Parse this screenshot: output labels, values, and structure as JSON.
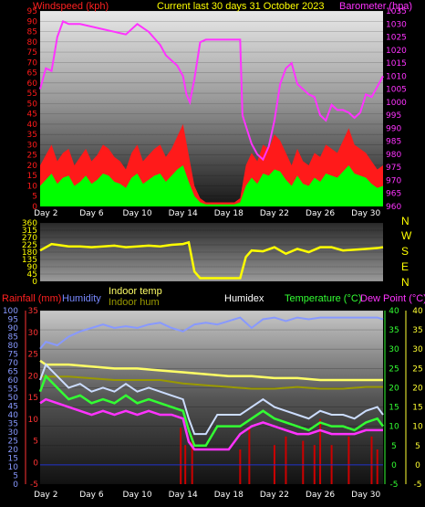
{
  "header": {
    "left": "Windspeed (kph)",
    "center": "Current last 30 days 31 October 2023",
    "right": "Barometer (hpa)"
  },
  "bottom_header": {
    "rainfall": "Rainfall (mm)",
    "humidity": "Humidity",
    "indoor_temp": "Indoor temp",
    "indoor_hum": "Indoor hum",
    "humidex": "Humidex",
    "temperature": "Temperature (°C)",
    "dew_point": "Dew Point (°C)"
  },
  "colors": {
    "wind_gust": "#ff1a1a",
    "wind_avg": "#00ff00",
    "barometer": "#ff33ff",
    "direction": "#ffff00",
    "rainfall": "#cc0000",
    "humidity": "#8899ff",
    "indoor_temp": "#ffff66",
    "indoor_hum": "#999900",
    "temperature": "#33ff33",
    "dew_point": "#ff33ff",
    "temp_light": "#ccddff"
  },
  "chart_data": [
    {
      "type": "area",
      "title": "Current last 30 days 31 October 2023",
      "ylabel_left": "Windspeed (kph)",
      "ylabel_right": "Barometer (hpa)",
      "x_ticks": [
        "Day 2",
        "Day 6",
        "Day 10",
        "Day 14",
        "Day 18",
        "Day 22",
        "Day 26",
        "Day 30"
      ],
      "left_ticks": [
        0,
        5,
        10,
        15,
        20,
        25,
        30,
        35,
        40,
        45,
        50,
        55,
        60,
        65,
        70,
        75,
        80,
        85,
        90,
        95
      ],
      "right_ticks": [
        960,
        965,
        970,
        975,
        980,
        985,
        990,
        995,
        1000,
        1005,
        1010,
        1015,
        1020,
        1025,
        1030,
        1035
      ],
      "ylim_left": [
        0,
        95
      ],
      "ylim_right": [
        960,
        1035
      ],
      "x_range": [
        1.5,
        31.5
      ],
      "series": [
        {
          "name": "Barometer (hpa)",
          "axis": "right",
          "x": [
            1.5,
            2,
            2.5,
            3,
            3.5,
            4,
            5,
            6,
            7,
            8,
            9,
            10,
            11,
            12,
            12.5,
            13,
            13.5,
            14,
            14.3,
            14.6,
            15,
            15.5,
            16,
            17,
            18,
            19,
            19.2,
            20,
            20.5,
            21,
            21.5,
            22,
            22.5,
            23,
            23.5,
            24,
            24.5,
            25,
            25.5,
            26,
            26.5,
            27,
            27.5,
            28,
            28.5,
            29,
            29.5,
            30,
            30.5,
            31,
            31.5
          ],
          "values": [
            1005,
            1013,
            1012,
            1025,
            1031,
            1030,
            1030,
            1029,
            1028,
            1027,
            1026,
            1030,
            1027,
            1022,
            1018,
            1016,
            1014,
            1010,
            1003,
            1000,
            1009,
            1023,
            1024,
            1024,
            1024,
            1024,
            995,
            984,
            980,
            978,
            983,
            993,
            1007,
            1013,
            1015,
            1007,
            1005,
            1003,
            1002,
            995,
            993,
            999,
            997,
            997,
            996,
            994,
            996,
            1003,
            1002,
            1006,
            1010
          ]
        },
        {
          "name": "Windspeed gust (kph)",
          "axis": "left",
          "color": "#ff1a1a",
          "x": [
            1.5,
            2,
            2.5,
            3,
            3.5,
            4,
            4.5,
            5,
            5.5,
            6,
            6.5,
            7,
            7.5,
            8,
            8.5,
            9,
            9.5,
            10,
            10.5,
            11,
            11.5,
            12,
            12.5,
            13,
            13.5,
            14,
            14.5,
            15,
            15.5,
            16,
            16.5,
            17,
            17.5,
            18,
            18.5,
            19,
            19.5,
            20,
            20.5,
            21,
            21.5,
            22,
            22.5,
            23,
            23.5,
            24,
            24.5,
            25,
            25.5,
            26,
            26.5,
            27,
            27.5,
            28,
            28.5,
            29,
            29.5,
            30,
            30.5,
            31,
            31.5
          ],
          "values": [
            20,
            25,
            30,
            22,
            26,
            28,
            20,
            24,
            28,
            22,
            25,
            30,
            28,
            24,
            22,
            18,
            26,
            30,
            22,
            25,
            28,
            30,
            24,
            28,
            34,
            40,
            25,
            10,
            4,
            2,
            2,
            2,
            2,
            2,
            2,
            4,
            20,
            26,
            22,
            30,
            28,
            35,
            32,
            26,
            20,
            28,
            22,
            20,
            26,
            24,
            30,
            28,
            26,
            32,
            38,
            30,
            28,
            26,
            22,
            18,
            20
          ]
        },
        {
          "name": "Windspeed avg (kph)",
          "axis": "left",
          "color": "#00ff00",
          "x": [
            1.5,
            2,
            2.5,
            3,
            3.5,
            4,
            4.5,
            5,
            5.5,
            6,
            6.5,
            7,
            7.5,
            8,
            8.5,
            9,
            9.5,
            10,
            10.5,
            11,
            11.5,
            12,
            12.5,
            13,
            13.5,
            14,
            14.5,
            15,
            15.5,
            16,
            16.5,
            17,
            17.5,
            18,
            18.5,
            19,
            19.5,
            20,
            20.5,
            21,
            21.5,
            22,
            22.5,
            23,
            23.5,
            24,
            24.5,
            25,
            25.5,
            26,
            26.5,
            27,
            27.5,
            28,
            28.5,
            29,
            29.5,
            30,
            30.5,
            31,
            31.5
          ],
          "values": [
            10,
            13,
            16,
            11,
            14,
            15,
            10,
            12,
            15,
            11,
            13,
            16,
            15,
            12,
            11,
            9,
            14,
            16,
            11,
            13,
            15,
            16,
            12,
            15,
            18,
            20,
            12,
            5,
            2,
            1,
            1,
            1,
            1,
            1,
            1,
            2,
            10,
            14,
            11,
            16,
            15,
            18,
            17,
            13,
            10,
            15,
            11,
            10,
            14,
            12,
            16,
            15,
            14,
            17,
            20,
            16,
            15,
            14,
            11,
            9,
            10
          ]
        }
      ]
    },
    {
      "type": "line",
      "ylabel_right": [
        "N",
        "W",
        "S",
        "E",
        "N"
      ],
      "left_ticks": [
        0,
        45,
        90,
        135,
        180,
        225,
        270,
        315,
        360
      ],
      "ylim": [
        0,
        360
      ],
      "series": [
        {
          "name": "Wind direction",
          "x": [
            1.5,
            2,
            2.5,
            3,
            3.5,
            4,
            5,
            6,
            7,
            8,
            9,
            10,
            11,
            12,
            13,
            14,
            14.5,
            15,
            15.5,
            16,
            17,
            18,
            19,
            19.5,
            20,
            21,
            22,
            23,
            24,
            25,
            26,
            27,
            28,
            29,
            30,
            31,
            31.5
          ],
          "values": [
            190,
            210,
            230,
            225,
            220,
            215,
            215,
            210,
            215,
            220,
            210,
            215,
            220,
            215,
            225,
            230,
            240,
            60,
            20,
            20,
            20,
            20,
            20,
            150,
            190,
            185,
            210,
            170,
            200,
            180,
            210,
            210,
            190,
            195,
            200,
            205,
            210
          ]
        }
      ]
    },
    {
      "type": "line",
      "left_ticks": [
        0,
        5,
        10,
        15,
        20,
        25,
        30,
        35,
        40,
        45,
        50,
        55,
        60,
        65,
        70,
        75,
        80,
        85,
        90,
        95,
        100
      ],
      "mid_ticks": [
        -5,
        0,
        5,
        10,
        15,
        20,
        25,
        30,
        35
      ],
      "right_ticks": [
        -5,
        0,
        5,
        10,
        15,
        20,
        25,
        30,
        35,
        40
      ],
      "series": [
        {
          "name": "Humidity",
          "axis": "left",
          "x": [
            1.5,
            2,
            3,
            4,
            5,
            6,
            7,
            8,
            9,
            10,
            11,
            12,
            13,
            14,
            15,
            16,
            17,
            18,
            19,
            20,
            21,
            22,
            23,
            24,
            25,
            26,
            27,
            28,
            29,
            30,
            31,
            31.5
          ],
          "values": [
            78,
            82,
            80,
            85,
            88,
            90,
            92,
            90,
            91,
            90,
            92,
            93,
            90,
            88,
            92,
            93,
            92,
            94,
            96,
            90,
            95,
            96,
            94,
            96,
            95,
            96,
            96,
            96,
            96,
            96,
            96,
            95
          ]
        },
        {
          "name": "Indoor temp",
          "axis": "right",
          "x": [
            1.5,
            2,
            4,
            6,
            8,
            10,
            12,
            14,
            16,
            18,
            20,
            22,
            24,
            26,
            28,
            30,
            31.5
          ],
          "values": [
            27,
            26,
            26,
            25.5,
            25,
            25,
            24.5,
            24,
            23.5,
            23,
            23,
            22.5,
            22.5,
            22,
            22,
            22,
            22
          ]
        },
        {
          "name": "Indoor hum",
          "axis": "left",
          "x": [
            1.5,
            2,
            4,
            6,
            8,
            10,
            12,
            14,
            16,
            18,
            20,
            22,
            24,
            26,
            28,
            30,
            31.5
          ],
          "values": [
            62,
            62,
            62,
            61,
            60,
            60,
            60,
            58,
            57,
            56,
            55,
            55,
            56,
            55,
            55,
            56,
            56
          ]
        },
        {
          "name": "Temperature (°C)",
          "axis": "right",
          "x": [
            1.5,
            2,
            3,
            4,
            5,
            6,
            7,
            8,
            9,
            10,
            11,
            12,
            13,
            14,
            14.5,
            15,
            16,
            17,
            18,
            19,
            20,
            21,
            22,
            23,
            24,
            25,
            26,
            27,
            28,
            29,
            30,
            31,
            31.5
          ],
          "values": [
            19,
            23,
            20,
            17,
            18,
            16,
            17,
            16,
            18,
            16,
            17,
            16,
            15,
            14,
            9,
            5,
            5,
            10,
            10,
            10,
            12,
            14,
            12,
            11,
            10,
            9,
            11,
            10,
            10,
            9,
            11,
            12,
            10
          ]
        },
        {
          "name": "Dew Point (°C)",
          "axis": "right",
          "x": [
            1.5,
            2,
            3,
            4,
            5,
            6,
            7,
            8,
            9,
            10,
            11,
            12,
            13,
            14,
            14.5,
            15,
            16,
            17,
            18,
            19,
            20,
            21,
            22,
            23,
            24,
            25,
            26,
            27,
            28,
            29,
            30,
            31,
            31.5
          ],
          "values": [
            16,
            17,
            16,
            15,
            14,
            13,
            14,
            13,
            14,
            13,
            14,
            13,
            13,
            12,
            6,
            4,
            4,
            4,
            4,
            8,
            10,
            11,
            10,
            9,
            8,
            8,
            9,
            8,
            8,
            8,
            9,
            9,
            9
          ]
        },
        {
          "name": "Rainfall (mm)",
          "axis": "left",
          "x": [
            13.8,
            14.2,
            14.8,
            19,
            19.8,
            22,
            23,
            24.5,
            25.5,
            26,
            27,
            28.5,
            30.5,
            31
          ],
          "values": [
            8,
            4,
            6,
            3,
            8,
            4,
            6,
            5,
            4,
            10,
            4,
            6,
            6,
            3
          ]
        }
      ]
    }
  ]
}
